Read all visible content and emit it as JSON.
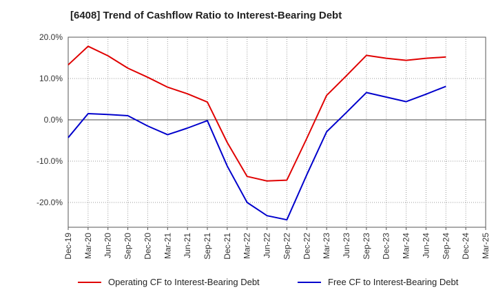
{
  "title": "[6408]  Trend of Cashflow Ratio to Interest-Bearing Debt",
  "chart_data": {
    "type": "line",
    "title": "[6408]  Trend of Cashflow Ratio to Interest-Bearing Debt",
    "xlabel": "",
    "ylabel": "",
    "categories": [
      "Dec-19",
      "Mar-20",
      "Jun-20",
      "Sep-20",
      "Dec-20",
      "Mar-21",
      "Jun-21",
      "Sep-21",
      "Dec-21",
      "Mar-22",
      "Jun-22",
      "Sep-22",
      "Dec-22",
      "Mar-23",
      "Jun-23",
      "Sep-23",
      "Dec-23",
      "Mar-24",
      "Jun-24",
      "Sep-24",
      "Dec-24",
      "Mar-25"
    ],
    "y_ticks": [
      20,
      10,
      0,
      -10,
      -20
    ],
    "y_tick_labels": [
      "20.0%",
      "10.0%",
      "0.0%",
      "-10.0%",
      "-20.0%"
    ],
    "ylim": [
      -26,
      20
    ],
    "grid": true,
    "legend_position": "bottom",
    "series": [
      {
        "name": "Operating CF to Interest-Bearing Debt",
        "color": "#e00000",
        "values": [
          13.3,
          17.8,
          15.5,
          12.5,
          10.3,
          7.9,
          6.3,
          4.3,
          -5.5,
          -13.7,
          -14.8,
          -14.6,
          -4.5,
          5.9,
          10.7,
          15.6,
          14.9,
          14.4,
          14.9,
          15.2,
          null,
          null
        ]
      },
      {
        "name": "Free CF to Interest-Bearing Debt",
        "color": "#0000cc",
        "values": [
          -4.3,
          1.5,
          1.3,
          1.0,
          -1.5,
          -3.6,
          -2.0,
          -0.2,
          -11.2,
          -20.0,
          -23.2,
          -24.2,
          -13.3,
          -2.9,
          1.8,
          6.6,
          5.5,
          4.4,
          6.2,
          8.1,
          null,
          null
        ]
      }
    ]
  }
}
